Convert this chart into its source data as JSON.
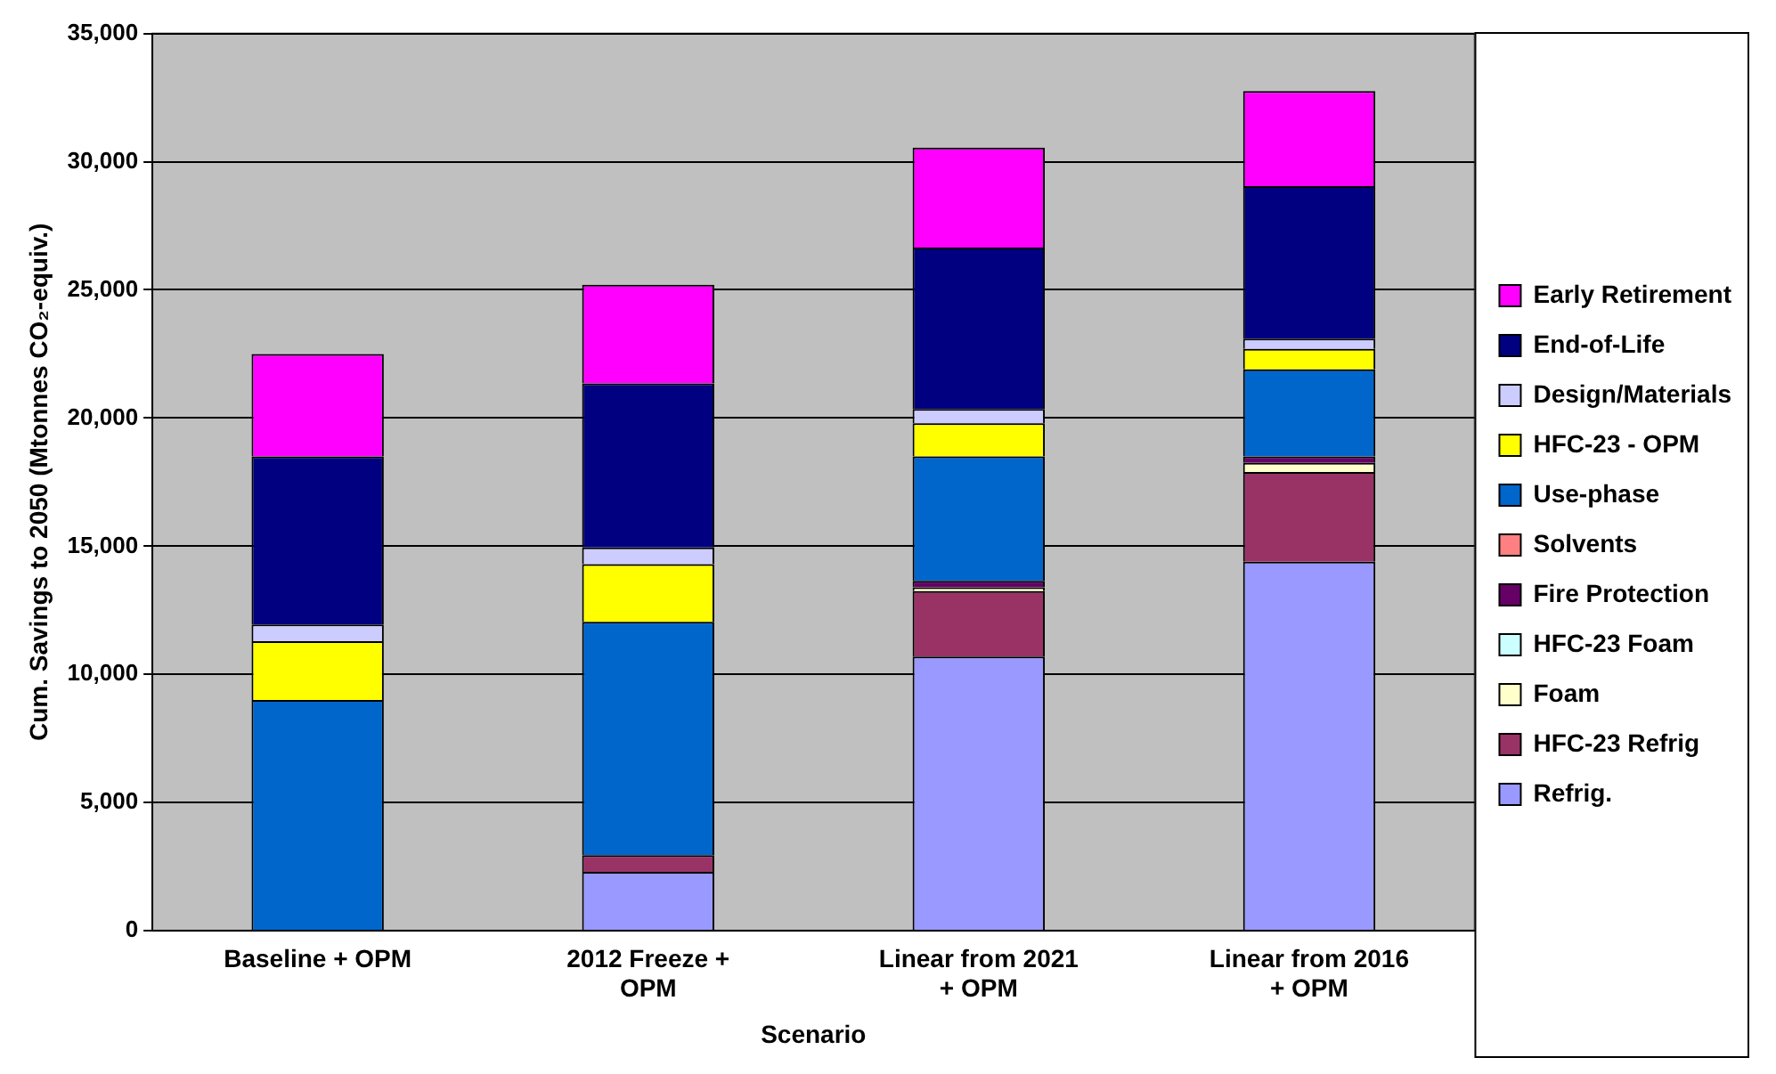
{
  "chart_data": {
    "type": "bar",
    "stacked": true,
    "xlabel": "Scenario",
    "ylabel": "Cum. Savings to 2050 (Mtonnes CO₂-equiv.)",
    "categories": [
      "Baseline + OPM",
      "2012 Freeze + OPM",
      "Linear from 2021 + OPM",
      "Linear from 2016 + OPM"
    ],
    "ylim": [
      0,
      35000
    ],
    "yticks": [
      0,
      {
        "value": 5000,
        "label": "5,000"
      },
      {
        "value": 10000,
        "label": "10,000"
      },
      {
        "value": 15000,
        "label": "15,000"
      },
      {
        "value": 20000,
        "label": "20,000"
      },
      {
        "value": 25000,
        "label": "25,000"
      },
      {
        "value": 30000,
        "label": "30,000"
      },
      {
        "value": 35000,
        "label": "35,000"
      }
    ],
    "grid": "y",
    "legend": "right",
    "series": [
      {
        "name": "Refrig.",
        "color": "#9999ff",
        "values": [
          0,
          2300,
          10700,
          14400
        ]
      },
      {
        "name": "HFC-23 Refrig",
        "color": "#993366",
        "values": [
          0,
          650,
          2550,
          3500
        ]
      },
      {
        "name": "Foam",
        "color": "#ffffcc",
        "values": [
          0,
          0,
          150,
          350
        ]
      },
      {
        "name": "HFC-23 Foam",
        "color": "#ccffff",
        "values": [
          0,
          0,
          0,
          0
        ]
      },
      {
        "name": "Fire Protection",
        "color": "#660066",
        "values": [
          0,
          0,
          250,
          250
        ]
      },
      {
        "name": "Solvents",
        "color": "#ff8080",
        "values": [
          0,
          0,
          0,
          0
        ]
      },
      {
        "name": "Use-phase",
        "color": "#0066cc",
        "values": [
          9000,
          9100,
          4850,
          3400
        ]
      },
      {
        "name": "HFC-23 - OPM",
        "color": "#ffff00",
        "values": [
          2300,
          2250,
          1300,
          800
        ]
      },
      {
        "name": "Design/Materials",
        "color": "#ccccff",
        "values": [
          650,
          650,
          550,
          400
        ]
      },
      {
        "name": "End-of-Life",
        "color": "#000080",
        "values": [
          6550,
          6400,
          6300,
          5950
        ]
      },
      {
        "name": "Early Retirement",
        "color": "#ff00ff",
        "values": [
          4000,
          3850,
          3900,
          3700
        ]
      }
    ]
  }
}
